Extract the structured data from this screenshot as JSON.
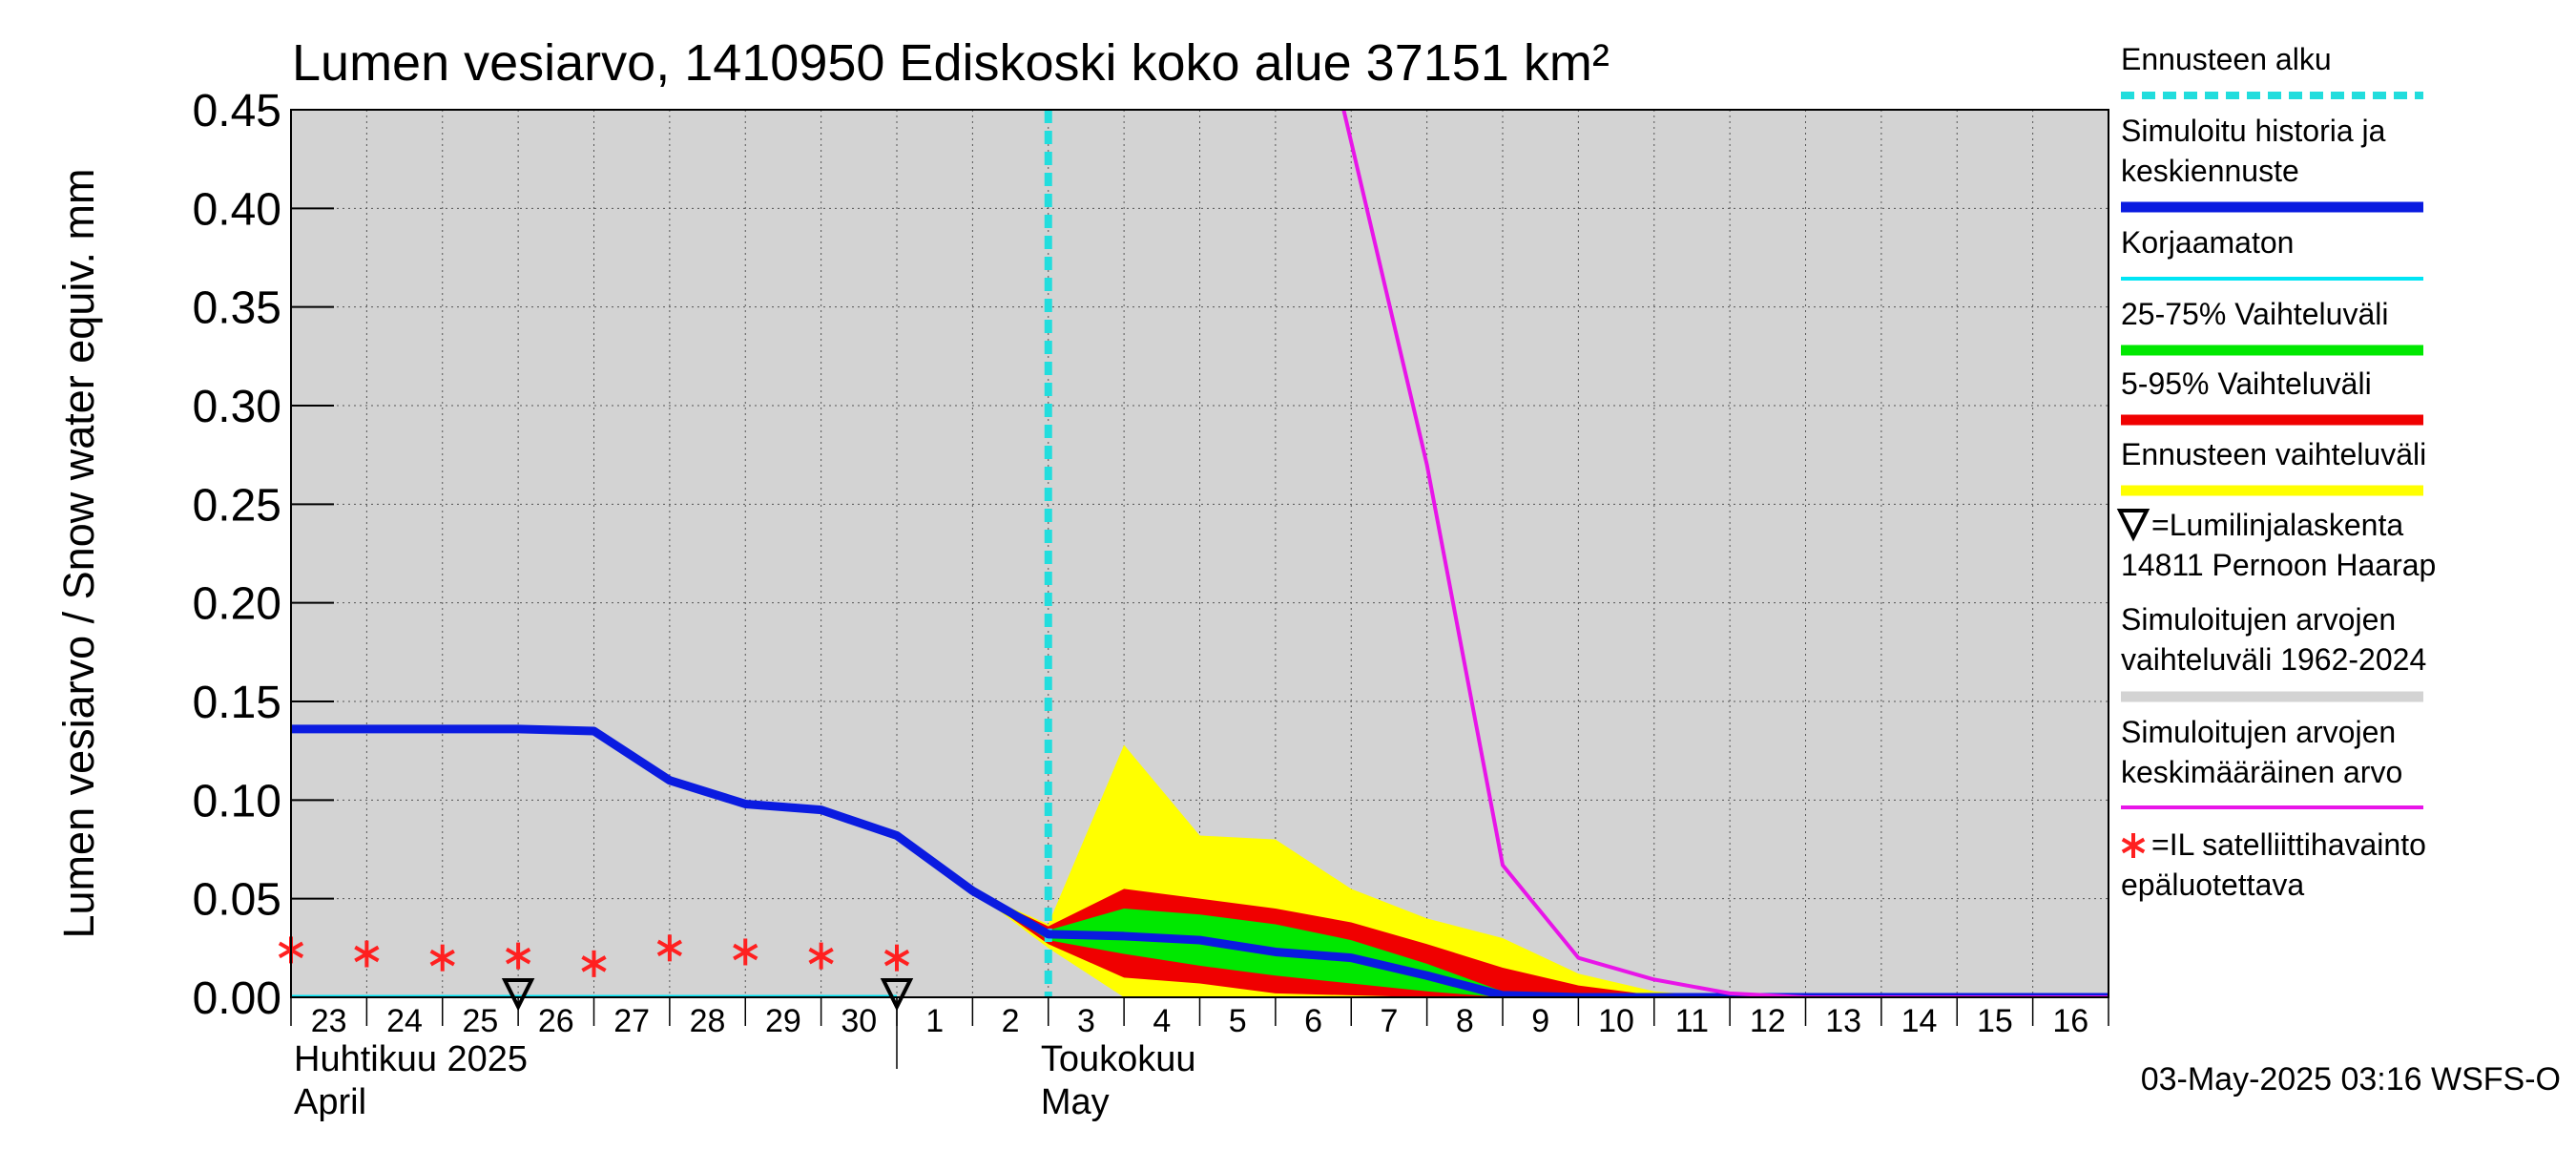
{
  "chart_data": {
    "type": "area",
    "title": "Lumen vesiarvo, 1410950 Ediskoski koko alue 37151 km²",
    "ylabel": "Lumen vesiarvo / Snow water equiv.    mm",
    "ylim": [
      0,
      0.45
    ],
    "yticks": [
      "0.00",
      "0.05",
      "0.10",
      "0.15",
      "0.20",
      "0.25",
      "0.30",
      "0.35",
      "0.40",
      "0.45"
    ],
    "x_start_date": "2025-04-23",
    "x_end_date": "2025-05-17",
    "xtick_labels": [
      "23",
      "24",
      "25",
      "26",
      "27",
      "28",
      "29",
      "30",
      "1",
      "2",
      "3",
      "4",
      "5",
      "6",
      "7",
      "8",
      "9",
      "10",
      "11",
      "12",
      "13",
      "14",
      "15",
      "16"
    ],
    "month_labels": [
      {
        "fi": "Huhtikuu  2025",
        "en": "April"
      },
      {
        "fi": "Toukokuu",
        "en": "May"
      }
    ],
    "forecast_start": "2025-05-03",
    "grid": true,
    "legend_placement": "right",
    "timestamp": "03-May-2025 03:16 WSFS-O",
    "colors": {
      "forecast_start": "#22dddd",
      "simulated": "#0a1be0",
      "uncorrected": "#00e5f5",
      "band_25_75": "#00e800",
      "band_5_95": "#f00000",
      "forecast_range": "#ffff00",
      "hist_range": "#d3d3d3",
      "hist_mean": "#e815e8",
      "satellite": "#ff2020",
      "plot_bg": "#d3d3d3"
    },
    "series": [
      {
        "name": "Simuloitu historia ja keskiennuste",
        "x": [
          "2025-04-23",
          "2025-04-24",
          "2025-04-25",
          "2025-04-26",
          "2025-04-27",
          "2025-04-28",
          "2025-04-29",
          "2025-04-30",
          "2025-05-01",
          "2025-05-02",
          "2025-05-03",
          "2025-05-04",
          "2025-05-05",
          "2025-05-06",
          "2025-05-07",
          "2025-05-08",
          "2025-05-09",
          "2025-05-10",
          "2025-05-11",
          "2025-05-12",
          "2025-05-13",
          "2025-05-14",
          "2025-05-15",
          "2025-05-16",
          "2025-05-17"
        ],
        "values": [
          0.136,
          0.136,
          0.136,
          0.136,
          0.135,
          0.11,
          0.098,
          0.095,
          0.082,
          0.054,
          0.032,
          0.031,
          0.029,
          0.023,
          0.02,
          0.011,
          0.001,
          0.0,
          0.0,
          0.0,
          0.0,
          0.0,
          0.0,
          0.0,
          0.0
        ]
      },
      {
        "name": "Korjaamaton",
        "x": [
          "2025-04-23",
          "2025-05-01"
        ],
        "values": [
          0.0,
          0.0
        ]
      },
      {
        "name": "Simuloitujen arvojen keskimääräinen arvo",
        "x": [
          "2025-05-06.9",
          "2025-05-08",
          "2025-05-09",
          "2025-05-10",
          "2025-05-11",
          "2025-05-12",
          "2025-05-13",
          "2025-05-14",
          "2025-05-15",
          "2025-05-16",
          "2025-05-17"
        ],
        "values": [
          0.45,
          0.27,
          0.067,
          0.02,
          0.009,
          0.002,
          0.0,
          0.0,
          0.0,
          0.0,
          0.0
        ]
      }
    ],
    "bands": [
      {
        "name": "Ennusteen vaihteluväli",
        "x": [
          "2025-05-02",
          "2025-05-03",
          "2025-05-04",
          "2025-05-05",
          "2025-05-06",
          "2025-05-07",
          "2025-05-08",
          "2025-05-09",
          "2025-05-10",
          "2025-05-11",
          "2025-05-12"
        ],
        "upper": [
          0.054,
          0.037,
          0.128,
          0.082,
          0.08,
          0.055,
          0.04,
          0.03,
          0.012,
          0.003,
          0.0
        ],
        "lower": [
          0.054,
          0.025,
          0.0,
          0.0,
          0.0,
          0.0,
          0.0,
          0.0,
          0.0,
          0.0,
          0.0
        ]
      },
      {
        "name": "5-95% Vaihteluväli",
        "x": [
          "2025-05-02",
          "2025-05-03",
          "2025-05-04",
          "2025-05-05",
          "2025-05-06",
          "2025-05-07",
          "2025-05-08",
          "2025-05-09",
          "2025-05-10",
          "2025-05-11",
          "2025-05-12"
        ],
        "upper": [
          0.054,
          0.036,
          0.055,
          0.05,
          0.045,
          0.038,
          0.027,
          0.015,
          0.006,
          0.001,
          0.0
        ],
        "lower": [
          0.054,
          0.027,
          0.01,
          0.007,
          0.002,
          0.001,
          0.0,
          0.0,
          0.0,
          0.0,
          0.0
        ]
      },
      {
        "name": "25-75% Vaihteluväli",
        "x": [
          "2025-05-02",
          "2025-05-03",
          "2025-05-04",
          "2025-05-05",
          "2025-05-06",
          "2025-05-07",
          "2025-05-08",
          "2025-05-09",
          "2025-05-10",
          "2025-05-11",
          "2025-05-12"
        ],
        "upper": [
          0.054,
          0.034,
          0.045,
          0.042,
          0.037,
          0.029,
          0.017,
          0.003,
          0.001,
          0.0,
          0.0
        ],
        "lower": [
          0.054,
          0.029,
          0.022,
          0.016,
          0.011,
          0.007,
          0.003,
          0.0,
          0.0,
          0.0,
          0.0
        ]
      }
    ],
    "satellite_points": {
      "name": "=IL satelliittihavainto epäluotettava",
      "x": [
        "2025-04-23",
        "2025-04-24",
        "2025-04-25",
        "2025-04-26",
        "2025-04-27",
        "2025-04-28",
        "2025-04-29",
        "2025-04-30",
        "2025-05-01"
      ],
      "values": [
        0.024,
        0.022,
        0.02,
        0.021,
        0.017,
        0.025,
        0.023,
        0.021,
        0.02
      ]
    },
    "snow_course_points": {
      "name": "=Lumilinjalaskenta 14811 Pernoon Haarap",
      "x": [
        "2025-04-26",
        "2025-05-01"
      ],
      "values": [
        0.0,
        0.0
      ]
    },
    "legend": [
      {
        "label": "Ennusteen alku",
        "style": "dashed",
        "color": "#22dddd"
      },
      {
        "label": "Simuloitu historia ja keskiennuste",
        "style": "thick",
        "color": "#0a1be0"
      },
      {
        "label": "Korjaamaton",
        "style": "thin",
        "color": "#00e5f5"
      },
      {
        "label": "25-75% Vaihteluväli",
        "style": "thick",
        "color": "#00e800"
      },
      {
        "label": "5-95% Vaihteluväli",
        "style": "thick",
        "color": "#f00000"
      },
      {
        "label": "Ennusteen vaihteluväli",
        "style": "thick",
        "color": "#ffff00"
      },
      {
        "label": "=Lumilinjalaskenta 14811 Pernoon Haarap",
        "style": "triangle",
        "color": "#000000"
      },
      {
        "label": "Simuloitujen arvojen vaihteluväli 1962-2024",
        "style": "thick",
        "color": "#d3d3d3"
      },
      {
        "label": "Simuloitujen arvojen keskimääräinen arvo",
        "style": "thin",
        "color": "#e815e8"
      },
      {
        "label": "=IL satelliittihavainto epäluotettava",
        "style": "star",
        "color": "#ff2020"
      }
    ]
  }
}
